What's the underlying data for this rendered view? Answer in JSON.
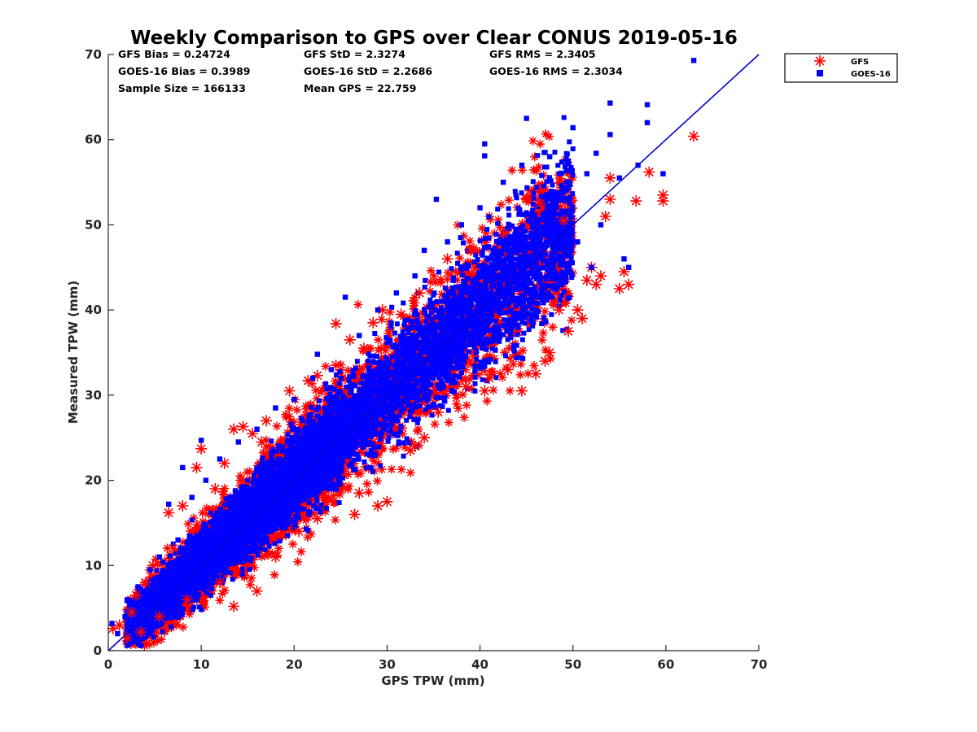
{
  "chart_data": {
    "type": "scatter",
    "title": "Weekly Comparison to GPS over Clear CONUS 2019-05-16",
    "xlabel": "GPS TPW (mm)",
    "ylabel": "Measured TPW (mm)",
    "xlim": [
      0,
      70
    ],
    "ylim": [
      0,
      70
    ],
    "xticks": [
      "0",
      "10",
      "20",
      "30",
      "40",
      "50",
      "60",
      "70"
    ],
    "yticks": [
      "0",
      "10",
      "20",
      "30",
      "40",
      "50",
      "60",
      "70"
    ],
    "grid": false,
    "legend_position": "outside-top-right",
    "stats": [
      {
        "label": "GFS Bias = 0.24724"
      },
      {
        "label": "GFS StD = 2.3274"
      },
      {
        "label": "GFS RMS = 2.3405"
      },
      {
        "label": "GOES-16 Bias = 0.3989"
      },
      {
        "label": "GOES-16 StD = 2.2686"
      },
      {
        "label": "GOES-16 RMS = 2.3034"
      },
      {
        "label": "Sample Size = 166133"
      },
      {
        "label": "Mean GPS = 22.759"
      }
    ],
    "one_to_one_line": {
      "x": [
        0,
        70
      ],
      "y": [
        0,
        70
      ],
      "color": "#0000cc"
    },
    "series": [
      {
        "name": "GFS",
        "marker": "asterisk",
        "color": "#ff0000",
        "points": [
          [
            0.5,
            2.6
          ],
          [
            1.2,
            3.0
          ],
          [
            2.0,
            1.5
          ],
          [
            2.5,
            4.5
          ],
          [
            3.0,
            6.5
          ],
          [
            3.5,
            2.2
          ],
          [
            4.0,
            8.0
          ],
          [
            4.8,
            10.0
          ],
          [
            5.5,
            4.0
          ],
          [
            6.5,
            16.2
          ],
          [
            7.0,
            12.0
          ],
          [
            8.0,
            17.0
          ],
          [
            8.5,
            6.0
          ],
          [
            9.5,
            21.5
          ],
          [
            10.0,
            23.7
          ],
          [
            11.5,
            19.0
          ],
          [
            12.0,
            8.0
          ],
          [
            12.5,
            22.0
          ],
          [
            13.5,
            5.2
          ],
          [
            13.5,
            26.0
          ],
          [
            14.5,
            26.3
          ],
          [
            15.5,
            25.5
          ],
          [
            16.0,
            7.0
          ],
          [
            16.5,
            24.5
          ],
          [
            17.0,
            27.0
          ],
          [
            18.0,
            11.0
          ],
          [
            19.5,
            30.5
          ],
          [
            20.5,
            14.0
          ],
          [
            21.5,
            31.7
          ],
          [
            22.5,
            32.3
          ],
          [
            22.5,
            15.5
          ],
          [
            24.5,
            33.5
          ],
          [
            24.5,
            38.4
          ],
          [
            26.0,
            36.5
          ],
          [
            26.5,
            16.0
          ],
          [
            27.0,
            18.5
          ],
          [
            27.5,
            35.5
          ],
          [
            28.5,
            38.5
          ],
          [
            29.0,
            17.0
          ],
          [
            29.5,
            40.0
          ],
          [
            30.0,
            17.5
          ],
          [
            31.5,
            39.5
          ],
          [
            32.5,
            23.5
          ],
          [
            33.0,
            24.0
          ],
          [
            33.5,
            42.0
          ],
          [
            34.0,
            25.0
          ],
          [
            35.5,
            28.0
          ],
          [
            36.5,
            46.0
          ],
          [
            38.5,
            31.0
          ],
          [
            39.0,
            47.0
          ],
          [
            40.5,
            30.5
          ],
          [
            41.0,
            32.0
          ],
          [
            42.5,
            49.0
          ],
          [
            43.0,
            33.0
          ],
          [
            44.5,
            30.5
          ],
          [
            45.0,
            53.0
          ],
          [
            46.0,
            32.5
          ],
          [
            46.5,
            52.5
          ],
          [
            47.0,
            34.0
          ],
          [
            47.5,
            35.0
          ],
          [
            48.5,
            40.0
          ],
          [
            49.0,
            50.5
          ],
          [
            49.5,
            37.5
          ],
          [
            50.5,
            40.0
          ],
          [
            51.0,
            39.0
          ],
          [
            51.5,
            43.5
          ],
          [
            52.0,
            45.0
          ],
          [
            52.5,
            43.0
          ],
          [
            53.0,
            44.0
          ],
          [
            53.5,
            51.0
          ],
          [
            54.0,
            53.0
          ],
          [
            54.0,
            55.5
          ],
          [
            55.0,
            42.5
          ],
          [
            55.5,
            44.5
          ],
          [
            56.0,
            43.0
          ],
          [
            56.8,
            52.8
          ],
          [
            58.2,
            56.2
          ],
          [
            59.7,
            53.5
          ],
          [
            59.7,
            52.8
          ],
          [
            63.0,
            60.4
          ]
        ]
      },
      {
        "name": "GOES-16",
        "marker": "square",
        "color": "#0000ff",
        "points": [
          [
            0.4,
            3.2
          ],
          [
            1.0,
            2.0
          ],
          [
            1.8,
            4.0
          ],
          [
            2.6,
            3.5
          ],
          [
            3.2,
            7.5
          ],
          [
            4.0,
            5.5
          ],
          [
            4.5,
            9.5
          ],
          [
            5.5,
            11.0
          ],
          [
            6.0,
            7.5
          ],
          [
            6.5,
            17.2
          ],
          [
            7.5,
            13.0
          ],
          [
            8.0,
            21.5
          ],
          [
            8.5,
            10.0
          ],
          [
            9.0,
            18.0
          ],
          [
            10.0,
            24.7
          ],
          [
            10.5,
            20.0
          ],
          [
            11.0,
            9.5
          ],
          [
            12.0,
            22.5
          ],
          [
            13.0,
            13.0
          ],
          [
            14.0,
            24.5
          ],
          [
            15.0,
            17.0
          ],
          [
            16.0,
            26.0
          ],
          [
            17.0,
            15.0
          ],
          [
            18.0,
            28.5
          ],
          [
            19.0,
            18.0
          ],
          [
            20.0,
            29.5
          ],
          [
            21.0,
            20.0
          ],
          [
            22.0,
            32.0
          ],
          [
            22.5,
            34.8
          ],
          [
            23.0,
            22.0
          ],
          [
            24.0,
            33.0
          ],
          [
            25.5,
            41.5
          ],
          [
            26.0,
            24.0
          ],
          [
            27.0,
            37.0
          ],
          [
            28.0,
            26.0
          ],
          [
            29.0,
            40.0
          ],
          [
            30.0,
            28.0
          ],
          [
            31.0,
            42.0
          ],
          [
            32.0,
            30.0
          ],
          [
            33.0,
            44.0
          ],
          [
            34.0,
            47.0
          ],
          [
            35.0,
            33.0
          ],
          [
            35.3,
            53.0
          ],
          [
            36.5,
            48.0
          ],
          [
            37.5,
            34.0
          ],
          [
            38.0,
            50.0
          ],
          [
            39.0,
            36.0
          ],
          [
            40.0,
            52.0
          ],
          [
            40.5,
            58.1
          ],
          [
            40.5,
            59.5
          ],
          [
            41.5,
            37.0
          ],
          [
            42.5,
            55.0
          ],
          [
            43.5,
            38.0
          ],
          [
            44.5,
            57.0
          ],
          [
            45.0,
            62.5
          ],
          [
            46.0,
            40.0
          ],
          [
            47.0,
            58.5
          ],
          [
            47.5,
            58.0
          ],
          [
            48.5,
            43.0
          ],
          [
            49.5,
            57.5
          ],
          [
            50.0,
            61.4
          ],
          [
            50.5,
            48.0
          ],
          [
            51.5,
            56.0
          ],
          [
            52.0,
            45.0
          ],
          [
            52.5,
            58.4
          ],
          [
            53.0,
            50.0
          ],
          [
            54.0,
            64.3
          ],
          [
            54.0,
            60.6
          ],
          [
            55.0,
            55.5
          ],
          [
            55.5,
            46.0
          ],
          [
            56.0,
            45.0
          ],
          [
            57.0,
            57.0
          ],
          [
            58.0,
            64.1
          ],
          [
            58.0,
            62.0
          ],
          [
            59.7,
            56.0
          ],
          [
            63.0,
            69.3
          ]
        ]
      }
    ]
  }
}
